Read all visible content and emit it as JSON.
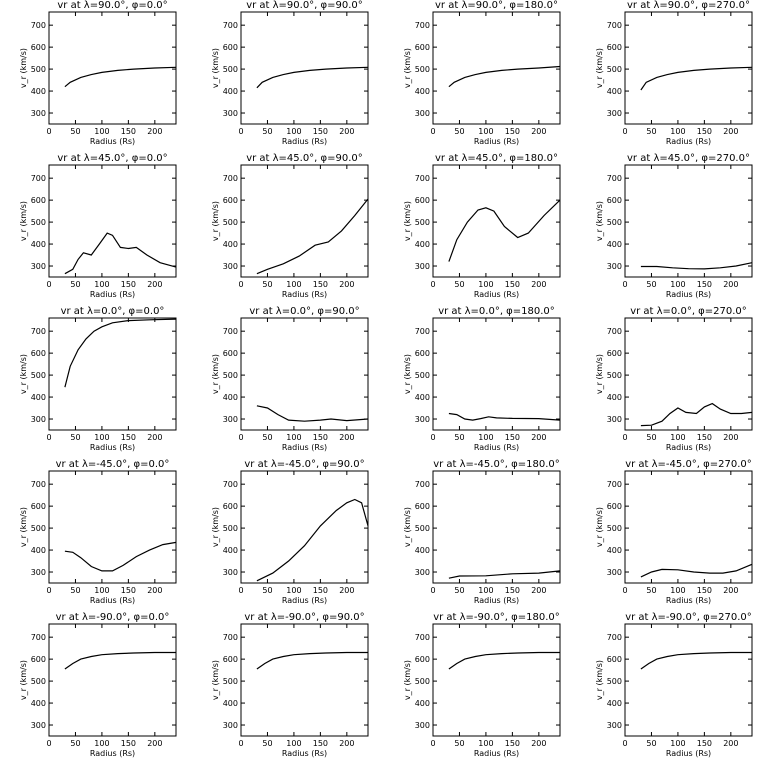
{
  "chart_data": {
    "type": "line",
    "xlabel": "Radius (Rs)",
    "ylabel": "v_r (km/s)",
    "xlim": [
      0,
      240
    ],
    "ylim": [
      250,
      760
    ],
    "xticks": [
      "0",
      "50",
      "100",
      "150",
      "200"
    ],
    "yticks": [
      "300",
      "400",
      "500",
      "600",
      "700"
    ],
    "panels": [
      {
        "title": "vr at λ=90.0°, φ=0.0°",
        "lambda": "90.0",
        "phi": "0.0",
        "points": [
          [
            30,
            420
          ],
          [
            40,
            440
          ],
          [
            60,
            462
          ],
          [
            80,
            475
          ],
          [
            100,
            485
          ],
          [
            130,
            494
          ],
          [
            160,
            500
          ],
          [
            200,
            505
          ],
          [
            240,
            508
          ]
        ]
      },
      {
        "title": "vr at λ=90.0°, φ=90.0°",
        "lambda": "90.0",
        "phi": "90.0",
        "points": [
          [
            30,
            415
          ],
          [
            40,
            440
          ],
          [
            60,
            462
          ],
          [
            80,
            475
          ],
          [
            100,
            485
          ],
          [
            130,
            494
          ],
          [
            160,
            500
          ],
          [
            200,
            505
          ],
          [
            240,
            508
          ]
        ]
      },
      {
        "title": "vr at λ=90.0°, φ=180.0°",
        "lambda": "90.0",
        "phi": "180.0",
        "points": [
          [
            30,
            420
          ],
          [
            40,
            440
          ],
          [
            60,
            462
          ],
          [
            80,
            475
          ],
          [
            100,
            485
          ],
          [
            130,
            494
          ],
          [
            160,
            500
          ],
          [
            200,
            505
          ],
          [
            240,
            512
          ]
        ]
      },
      {
        "title": "vr at λ=90.0°, φ=270.0°",
        "lambda": "90.0",
        "phi": "270.0",
        "points": [
          [
            30,
            405
          ],
          [
            40,
            440
          ],
          [
            60,
            462
          ],
          [
            80,
            475
          ],
          [
            100,
            485
          ],
          [
            130,
            494
          ],
          [
            160,
            500
          ],
          [
            200,
            505
          ],
          [
            240,
            508
          ]
        ]
      },
      {
        "title": "vr at λ=45.0°, φ=0.0°",
        "lambda": "45.0",
        "phi": "0.0",
        "points": [
          [
            30,
            265
          ],
          [
            45,
            285
          ],
          [
            55,
            330
          ],
          [
            65,
            360
          ],
          [
            80,
            350
          ],
          [
            95,
            400
          ],
          [
            110,
            450
          ],
          [
            120,
            440
          ],
          [
            135,
            385
          ],
          [
            150,
            380
          ],
          [
            165,
            385
          ],
          [
            185,
            350
          ],
          [
            210,
            315
          ],
          [
            240,
            295
          ]
        ]
      },
      {
        "title": "vr at λ=45.0°, φ=90.0°",
        "lambda": "45.0",
        "phi": "90.0",
        "points": [
          [
            30,
            265
          ],
          [
            50,
            285
          ],
          [
            80,
            310
          ],
          [
            110,
            345
          ],
          [
            140,
            395
          ],
          [
            165,
            410
          ],
          [
            190,
            460
          ],
          [
            215,
            530
          ],
          [
            240,
            605
          ]
        ]
      },
      {
        "title": "vr at λ=45.0°, φ=180.0°",
        "lambda": "45.0",
        "phi": "180.0",
        "points": [
          [
            30,
            320
          ],
          [
            45,
            420
          ],
          [
            65,
            500
          ],
          [
            85,
            555
          ],
          [
            100,
            565
          ],
          [
            115,
            550
          ],
          [
            135,
            480
          ],
          [
            160,
            430
          ],
          [
            180,
            450
          ],
          [
            210,
            530
          ],
          [
            240,
            600
          ]
        ]
      },
      {
        "title": "vr at λ=45.0°, φ=270.0°",
        "lambda": "45.0",
        "phi": "270.0",
        "points": [
          [
            30,
            298
          ],
          [
            60,
            298
          ],
          [
            90,
            292
          ],
          [
            120,
            288
          ],
          [
            150,
            287
          ],
          [
            180,
            292
          ],
          [
            210,
            300
          ],
          [
            240,
            315
          ]
        ]
      },
      {
        "title": "vr at λ=0.0°, φ=0.0°",
        "lambda": "0.0",
        "phi": "0.0",
        "points": [
          [
            30,
            445
          ],
          [
            40,
            540
          ],
          [
            55,
            615
          ],
          [
            70,
            665
          ],
          [
            85,
            700
          ],
          [
            100,
            720
          ],
          [
            120,
            738
          ],
          [
            150,
            748
          ],
          [
            190,
            752
          ],
          [
            240,
            755
          ]
        ]
      },
      {
        "title": "vr at λ=0.0°, φ=90.0°",
        "lambda": "0.0",
        "phi": "90.0",
        "points": [
          [
            30,
            360
          ],
          [
            50,
            350
          ],
          [
            70,
            320
          ],
          [
            90,
            295
          ],
          [
            120,
            290
          ],
          [
            150,
            295
          ],
          [
            170,
            300
          ],
          [
            200,
            293
          ],
          [
            240,
            300
          ]
        ]
      },
      {
        "title": "vr at λ=0.0°, φ=180.0°",
        "lambda": "0.0",
        "phi": "180.0",
        "points": [
          [
            30,
            325
          ],
          [
            45,
            320
          ],
          [
            60,
            300
          ],
          [
            75,
            295
          ],
          [
            90,
            302
          ],
          [
            105,
            310
          ],
          [
            120,
            305
          ],
          [
            150,
            303
          ],
          [
            200,
            302
          ],
          [
            240,
            295
          ]
        ]
      },
      {
        "title": "vr at λ=0.0°, φ=270.0°",
        "lambda": "0.0",
        "phi": "270.0",
        "points": [
          [
            30,
            270
          ],
          [
            50,
            272
          ],
          [
            70,
            290
          ],
          [
            85,
            325
          ],
          [
            100,
            350
          ],
          [
            115,
            330
          ],
          [
            135,
            325
          ],
          [
            150,
            355
          ],
          [
            165,
            370
          ],
          [
            180,
            345
          ],
          [
            200,
            325
          ],
          [
            220,
            325
          ],
          [
            240,
            330
          ]
        ]
      },
      {
        "title": "vr at λ=-45.0°, φ=0.0°",
        "lambda": "-45.0",
        "phi": "0.0",
        "points": [
          [
            30,
            395
          ],
          [
            45,
            390
          ],
          [
            60,
            365
          ],
          [
            80,
            325
          ],
          [
            100,
            305
          ],
          [
            120,
            305
          ],
          [
            140,
            330
          ],
          [
            165,
            370
          ],
          [
            190,
            400
          ],
          [
            215,
            425
          ],
          [
            240,
            435
          ]
        ]
      },
      {
        "title": "vr at λ=-45.0°, φ=90.0°",
        "lambda": "-45.0",
        "phi": "90.0",
        "points": [
          [
            30,
            260
          ],
          [
            60,
            295
          ],
          [
            90,
            350
          ],
          [
            120,
            420
          ],
          [
            150,
            510
          ],
          [
            180,
            580
          ],
          [
            200,
            615
          ],
          [
            215,
            630
          ],
          [
            228,
            615
          ],
          [
            240,
            510
          ]
        ]
      },
      {
        "title": "vr at λ=-45.0°, φ=180.0°",
        "lambda": "-45.0",
        "phi": "180.0",
        "points": [
          [
            30,
            272
          ],
          [
            50,
            282
          ],
          [
            100,
            283
          ],
          [
            150,
            292
          ],
          [
            200,
            295
          ],
          [
            220,
            300
          ],
          [
            240,
            305
          ]
        ]
      },
      {
        "title": "vr at λ=-45.0°, φ=270.0°",
        "lambda": "-45.0",
        "phi": "270.0",
        "points": [
          [
            30,
            278
          ],
          [
            50,
            300
          ],
          [
            70,
            312
          ],
          [
            100,
            310
          ],
          [
            130,
            300
          ],
          [
            160,
            295
          ],
          [
            185,
            295
          ],
          [
            210,
            305
          ],
          [
            240,
            335
          ]
        ]
      },
      {
        "title": "vr at λ=-90.0°, φ=0.0°",
        "lambda": "-90.0",
        "phi": "0.0",
        "points": [
          [
            30,
            555
          ],
          [
            45,
            580
          ],
          [
            60,
            600
          ],
          [
            80,
            612
          ],
          [
            100,
            620
          ],
          [
            130,
            625
          ],
          [
            160,
            628
          ],
          [
            200,
            630
          ],
          [
            240,
            630
          ]
        ]
      },
      {
        "title": "vr at λ=-90.0°, φ=90.0°",
        "lambda": "-90.0",
        "phi": "90.0",
        "points": [
          [
            30,
            555
          ],
          [
            45,
            580
          ],
          [
            60,
            600
          ],
          [
            80,
            612
          ],
          [
            100,
            620
          ],
          [
            130,
            625
          ],
          [
            160,
            628
          ],
          [
            200,
            630
          ],
          [
            240,
            630
          ]
        ]
      },
      {
        "title": "vr at λ=-90.0°, φ=180.0°",
        "lambda": "-90.0",
        "phi": "180.0",
        "points": [
          [
            30,
            555
          ],
          [
            45,
            580
          ],
          [
            60,
            600
          ],
          [
            80,
            612
          ],
          [
            100,
            620
          ],
          [
            130,
            625
          ],
          [
            160,
            628
          ],
          [
            200,
            630
          ],
          [
            240,
            630
          ]
        ]
      },
      {
        "title": "vr at λ=-90.0°, φ=270.0°",
        "lambda": "-90.0",
        "phi": "270.0",
        "points": [
          [
            30,
            555
          ],
          [
            45,
            580
          ],
          [
            60,
            600
          ],
          [
            80,
            612
          ],
          [
            100,
            620
          ],
          [
            130,
            625
          ],
          [
            160,
            628
          ],
          [
            200,
            630
          ],
          [
            240,
            630
          ]
        ]
      }
    ]
  }
}
